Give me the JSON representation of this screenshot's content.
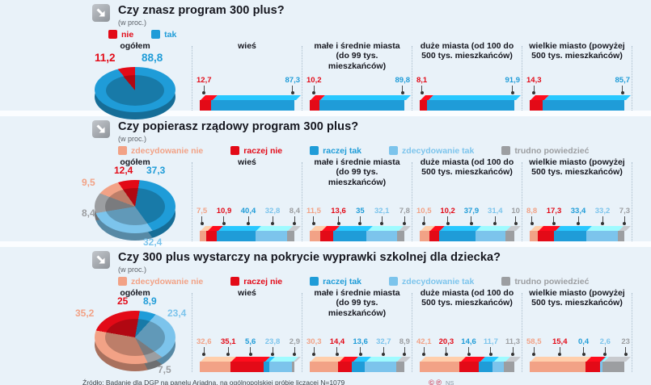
{
  "page": {
    "background": "#e9f2f9"
  },
  "colors": {
    "red": "#e30a17",
    "blue": "#1f9cd8",
    "light_blue": "#7cc4ec",
    "salmon": "#f2a286",
    "gray": "#9c9ea1"
  },
  "sections": [
    {
      "id": "know",
      "title": "Czy znasz program 300 plus?",
      "subtitle": "(w proc.)",
      "legend": [
        {
          "label": "nie",
          "color": "#e30a17"
        },
        {
          "label": "tak",
          "color": "#1f9cd8"
        }
      ],
      "pie": {
        "header": "ogółem",
        "start": -40,
        "slices": [
          {
            "name": "nie",
            "label": "11,2",
            "value": 11.2,
            "color": "#e30a17"
          },
          {
            "name": "tak",
            "label": "88,8",
            "value": 88.8,
            "color": "#1f9cd8"
          }
        ]
      },
      "columns": [
        {
          "header": "wieś",
          "segments": [
            {
              "label": "12,7",
              "value": 12.7,
              "color": "#e30a17"
            },
            {
              "label": "87,3",
              "value": 87.3,
              "color": "#1f9cd8"
            }
          ]
        },
        {
          "header": "małe i średnie miasta (do 99 tys. mieszkańców)",
          "segments": [
            {
              "label": "10,2",
              "value": 10.2,
              "color": "#e30a17"
            },
            {
              "label": "89,8",
              "value": 89.8,
              "color": "#1f9cd8"
            }
          ]
        },
        {
          "header": "duże miasta (od 100 do 500 tys. mieszkańców)",
          "segments": [
            {
              "label": "8,1",
              "value": 8.1,
              "color": "#e30a17"
            },
            {
              "label": "91,9",
              "value": 91.9,
              "color": "#1f9cd8"
            }
          ]
        },
        {
          "header": "wielkie miasto (powyżej 500 tys. mieszkańców)",
          "segments": [
            {
              "label": "14,3",
              "value": 14.3,
              "color": "#e30a17"
            },
            {
              "label": "85,7",
              "value": 85.7,
              "color": "#1f9cd8"
            }
          ]
        }
      ]
    },
    {
      "id": "support",
      "title": "Czy popierasz rządowy program 300 plus?",
      "subtitle": "(w proc.)",
      "legend": [
        {
          "label": "zdecydowanie nie",
          "color": "#f2a286"
        },
        {
          "label": "raczej nie",
          "color": "#e30a17"
        },
        {
          "label": "raczej tak",
          "color": "#1f9cd8"
        },
        {
          "label": "zdecydowanie tak",
          "color": "#7cc4ec"
        },
        {
          "label": "trudno powiedzieć",
          "color": "#9c9ea1"
        }
      ],
      "pie": {
        "header": "ogółem",
        "start": -35,
        "slices": [
          {
            "name": "raczej nie",
            "label": "12,4",
            "value": 12.4,
            "color": "#e30a17"
          },
          {
            "name": "raczej tak",
            "label": "37,3",
            "value": 37.3,
            "color": "#1f9cd8"
          },
          {
            "name": "zdecydowanie tak",
            "label": "32,4",
            "value": 32.4,
            "color": "#7cc4ec"
          },
          {
            "name": "trudno powiedzieć",
            "label": "8,4",
            "value": 8.4,
            "color": "#9c9ea1"
          },
          {
            "name": "zdecydowanie nie",
            "label": "9,5",
            "value": 9.5,
            "color": "#f2a286"
          }
        ]
      },
      "columns": [
        {
          "header": "wieś",
          "segments": [
            {
              "label": "7,5",
              "value": 7.5,
              "color": "#f2a286"
            },
            {
              "label": "10,9",
              "value": 10.9,
              "color": "#e30a17"
            },
            {
              "label": "40,4",
              "value": 40.4,
              "color": "#1f9cd8"
            },
            {
              "label": "32,8",
              "value": 32.8,
              "color": "#7cc4ec"
            },
            {
              "label": "8,4",
              "value": 8.4,
              "color": "#9c9ea1"
            }
          ]
        },
        {
          "header": "małe i średnie miasta (do 99 tys. mieszkańców)",
          "segments": [
            {
              "label": "11,5",
              "value": 11.5,
              "color": "#f2a286"
            },
            {
              "label": "13,6",
              "value": 13.6,
              "color": "#e30a17"
            },
            {
              "label": "35",
              "value": 35,
              "color": "#1f9cd8"
            },
            {
              "label": "32,1",
              "value": 32.1,
              "color": "#7cc4ec"
            },
            {
              "label": "7,8",
              "value": 7.8,
              "color": "#9c9ea1"
            }
          ]
        },
        {
          "header": "duże miasta (od 100 do 500 tys. mieszkańców)",
          "segments": [
            {
              "label": "10,5",
              "value": 10.5,
              "color": "#f2a286"
            },
            {
              "label": "10,2",
              "value": 10.2,
              "color": "#e30a17"
            },
            {
              "label": "37,9",
              "value": 37.9,
              "color": "#1f9cd8"
            },
            {
              "label": "31,4",
              "value": 31.4,
              "color": "#7cc4ec"
            },
            {
              "label": "10",
              "value": 10,
              "color": "#9c9ea1"
            }
          ]
        },
        {
          "header": "wielkie miasto (powyżej 500 tys. mieszkańców)",
          "segments": [
            {
              "label": "8,8",
              "value": 8.8,
              "color": "#f2a286"
            },
            {
              "label": "17,3",
              "value": 17.3,
              "color": "#e30a17"
            },
            {
              "label": "33,4",
              "value": 33.4,
              "color": "#1f9cd8"
            },
            {
              "label": "33,2",
              "value": 33.2,
              "color": "#7cc4ec"
            },
            {
              "label": "7,3",
              "value": 7.3,
              "color": "#9c9ea1"
            }
          ]
        }
      ]
    },
    {
      "id": "cover",
      "title": "Czy 300 plus wystarczy na pokrycie wyprawki szkolnej dla dziecka?",
      "subtitle": "(w proc.)",
      "legend": [
        {
          "label": "zdecydowanie nie",
          "color": "#f2a286"
        },
        {
          "label": "raczej nie",
          "color": "#e30a17"
        },
        {
          "label": "raczej tak",
          "color": "#1f9cd8"
        },
        {
          "label": "zdecydowanie tak",
          "color": "#7cc4ec"
        },
        {
          "label": "trudno powiedzieć",
          "color": "#9c9ea1"
        }
      ],
      "pie": {
        "header": "ogółem",
        "start": -80,
        "slices": [
          {
            "name": "raczej nie",
            "label": "25",
            "value": 25,
            "color": "#e30a17"
          },
          {
            "name": "raczej tak",
            "label": "8,9",
            "value": 8.9,
            "color": "#1f9cd8"
          },
          {
            "name": "zdecydowanie tak",
            "label": "23,4",
            "value": 23.4,
            "color": "#7cc4ec"
          },
          {
            "name": "trudno powiedzieć",
            "label": "7,5",
            "value": 7.5,
            "color": "#9c9ea1"
          },
          {
            "name": "zdecydowanie nie",
            "label": "35,2",
            "value": 35.2,
            "color": "#f2a286"
          }
        ]
      },
      "columns": [
        {
          "header": "wieś",
          "segments": [
            {
              "label": "32,6",
              "value": 32.6,
              "color": "#f2a286"
            },
            {
              "label": "35,1",
              "value": 35.1,
              "color": "#e30a17"
            },
            {
              "label": "5,6",
              "value": 5.6,
              "color": "#1f9cd8"
            },
            {
              "label": "23,8",
              "value": 23.8,
              "color": "#7cc4ec"
            },
            {
              "label": "2,9",
              "value": 2.9,
              "color": "#9c9ea1"
            }
          ]
        },
        {
          "header": "małe i średnie miasta (do 99 tys. mieszkańców)",
          "segments": [
            {
              "label": "30,3",
              "value": 30.3,
              "color": "#f2a286"
            },
            {
              "label": "14,4",
              "value": 14.4,
              "color": "#e30a17"
            },
            {
              "label": "13,6",
              "value": 13.6,
              "color": "#1f9cd8"
            },
            {
              "label": "32,7",
              "value": 32.7,
              "color": "#7cc4ec"
            },
            {
              "label": "8,9",
              "value": 8.9,
              "color": "#9c9ea1"
            }
          ]
        },
        {
          "header": "duże miasta (od 100 do 500 tys. mieszkańców)",
          "segments": [
            {
              "label": "42,1",
              "value": 42.1,
              "color": "#f2a286"
            },
            {
              "label": "20,3",
              "value": 20.3,
              "color": "#e30a17"
            },
            {
              "label": "14,6",
              "value": 14.6,
              "color": "#1f9cd8"
            },
            {
              "label": "11,7",
              "value": 11.7,
              "color": "#7cc4ec"
            },
            {
              "label": "11,3",
              "value": 11.3,
              "color": "#9c9ea1"
            }
          ]
        },
        {
          "header": "wielkie miasto (powyżej 500 tys. mieszkańców)",
          "segments": [
            {
              "label": "58,5",
              "value": 58.5,
              "color": "#f2a286"
            },
            {
              "label": "15,4",
              "value": 15.4,
              "color": "#e30a17"
            },
            {
              "label": "0,4",
              "value": 0.4,
              "color": "#1f9cd8"
            },
            {
              "label": "2,6",
              "value": 2.6,
              "color": "#7cc4ec"
            },
            {
              "label": "23",
              "value": 23,
              "color": "#9c9ea1"
            }
          ]
        }
      ]
    }
  ],
  "footer": {
    "source": "Źródło: Badanie dla DGP na panelu Ariadna, na ogólnopolskiej próbie liczącej N=1079",
    "icon1": "©",
    "icon2": "℗",
    "credit": "NS"
  },
  "chart_data": [
    {
      "type": "bar",
      "variant": "stacked-horizontal; 'ogółem' rendered as 3D pie",
      "title": "Czy znasz program 300 plus?",
      "unit": "w proc.",
      "legend_position": "top",
      "categories": [
        "ogółem",
        "wieś",
        "małe i średnie miasta (do 99 tys. mieszkańców)",
        "duże miasta (od 100 do 500 tys. mieszkańców)",
        "wielkie miasto (powyżej 500 tys. mieszkańców)"
      ],
      "series": [
        {
          "name": "nie",
          "values": [
            11.2,
            12.7,
            10.2,
            8.1,
            14.3
          ]
        },
        {
          "name": "tak",
          "values": [
            88.8,
            87.3,
            89.8,
            91.9,
            85.7
          ]
        }
      ]
    },
    {
      "type": "bar",
      "variant": "stacked-horizontal; 'ogółem' rendered as 3D pie",
      "title": "Czy popierasz rządowy program 300 plus?",
      "unit": "w proc.",
      "legend_position": "top",
      "categories": [
        "ogółem",
        "wieś",
        "małe i średnie miasta (do 99 tys. mieszkańców)",
        "duże miasta (od 100 do 500 tys. mieszkańców)",
        "wielkie miasto (powyżej 500 tys. mieszkańców)"
      ],
      "series": [
        {
          "name": "zdecydowanie nie",
          "values": [
            9.5,
            7.5,
            11.5,
            10.5,
            8.8
          ]
        },
        {
          "name": "raczej nie",
          "values": [
            12.4,
            10.9,
            13.6,
            10.2,
            17.3
          ]
        },
        {
          "name": "raczej tak",
          "values": [
            37.3,
            40.4,
            35,
            37.9,
            33.4
          ]
        },
        {
          "name": "zdecydowanie tak",
          "values": [
            32.4,
            32.8,
            32.1,
            31.4,
            33.2
          ]
        },
        {
          "name": "trudno powiedzieć",
          "values": [
            8.4,
            8.4,
            7.8,
            10,
            7.3
          ]
        }
      ]
    },
    {
      "type": "bar",
      "variant": "stacked-horizontal; 'ogółem' rendered as 3D pie",
      "title": "Czy 300 plus wystarczy na pokrycie wyprawki szkolnej dla dziecka?",
      "unit": "w proc.",
      "legend_position": "top",
      "categories": [
        "ogółem",
        "wieś",
        "małe i średnie miasta (do 99 tys. mieszkańców)",
        "duże miasta (od 100 do 500 tys. mieszkańców)",
        "wielkie miasto (powyżej 500 tys. mieszkańców)"
      ],
      "series": [
        {
          "name": "zdecydowanie nie",
          "values": [
            35.2,
            32.6,
            30.3,
            42.1,
            58.5
          ]
        },
        {
          "name": "raczej nie",
          "values": [
            25,
            35.1,
            14.4,
            20.3,
            15.4
          ]
        },
        {
          "name": "raczej tak",
          "values": [
            8.9,
            5.6,
            13.6,
            14.6,
            0.4
          ]
        },
        {
          "name": "zdecydowanie tak",
          "values": [
            23.4,
            23.8,
            32.7,
            11.7,
            2.6
          ]
        },
        {
          "name": "trudno powiedzieć",
          "values": [
            7.5,
            2.9,
            8.9,
            11.3,
            23
          ]
        }
      ]
    }
  ]
}
